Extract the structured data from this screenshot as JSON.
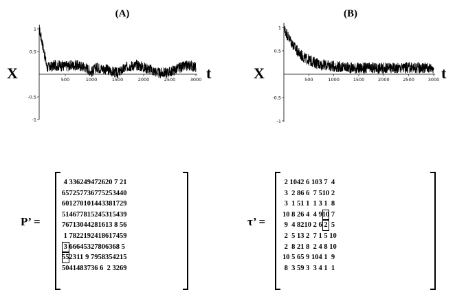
{
  "plots": [
    {
      "label": "(A)",
      "xlabel": "X",
      "tlabel": "t",
      "chart_data": {
        "type": "line",
        "title": "(A)",
        "xlabel": "t",
        "ylabel": "X",
        "xlim": [
          0,
          3000
        ],
        "ylim": [
          -1,
          1
        ],
        "xticks": [
          "500",
          "1000",
          "1500",
          "2000",
          "2500",
          "3000"
        ],
        "yticks": [
          "1",
          "0.5",
          "-0.5",
          "-1"
        ],
        "series": [
          {
            "values_description": "noisy trace starting near 1, dropping to ~0.15 by t=150 then fluctuating with dips below 0 around t=1000-1500 and t=2000-2500",
            "x": [
              0,
              50,
              100,
              150,
              200,
              300,
              500,
              700,
              900,
              1000,
              1100,
              1300,
              1500,
              1700,
              1900,
              2000,
              2100,
              2300,
              2500,
              2700,
              2900,
              3000
            ],
            "y": [
              1.0,
              0.75,
              0.45,
              0.15,
              0.15,
              0.2,
              0.18,
              0.2,
              0.15,
              0.05,
              0.15,
              0.1,
              0.02,
              0.18,
              0.2,
              0.15,
              0.12,
              0.02,
              0.05,
              0.15,
              0.2,
              0.15
            ]
          }
        ]
      }
    },
    {
      "label": "(B)",
      "xlabel": "X",
      "tlabel": "t",
      "chart_data": {
        "type": "line",
        "title": "(B)",
        "xlabel": "t",
        "ylabel": "X",
        "xlim": [
          0,
          3000
        ],
        "ylim": [
          -1,
          1
        ],
        "xticks": [
          "500",
          "1000",
          "1500",
          "2000",
          "2500",
          "3000"
        ],
        "yticks": [
          "1",
          "0.5",
          "-0.5",
          "-1"
        ],
        "series": [
          {
            "values_description": "noisy trace decaying from 1 to ~0.15 over t≈0-1200 then flat",
            "x": [
              0,
              100,
              200,
              300,
              400,
              500,
              700,
              900,
              1100,
              1300,
              1500,
              2000,
              2500,
              3000
            ],
            "y": [
              1.0,
              0.78,
              0.6,
              0.45,
              0.36,
              0.3,
              0.22,
              0.18,
              0.16,
              0.14,
              0.13,
              0.13,
              0.14,
              0.14
            ]
          }
        ]
      }
    }
  ],
  "matrices": [
    {
      "label": "P’ =",
      "rows": [
        [
          "4",
          "33",
          "62",
          "49",
          "47",
          "26",
          "20",
          "7",
          "21"
        ],
        [
          "65",
          "72",
          "57",
          "73",
          "67",
          "75",
          "25",
          "34",
          "40"
        ],
        [
          "60",
          "12",
          "70",
          "10",
          "14",
          "43",
          "38",
          "17",
          "29"
        ],
        [
          "51",
          "46",
          "77",
          "81",
          "52",
          "45",
          "31",
          "54",
          "39"
        ],
        [
          "76",
          "71",
          "30",
          "44",
          "28",
          "16",
          "13",
          "8",
          "56"
        ],
        [
          "1",
          "78",
          "22",
          "19",
          "24",
          "18",
          "61",
          "74",
          "59"
        ],
        [
          "3",
          "66",
          "64",
          "53",
          "27",
          "80",
          "63",
          "68",
          "5"
        ],
        [
          "55",
          "23",
          "11",
          "9",
          "79",
          "58",
          "35",
          "42",
          "15"
        ],
        [
          "50",
          "41",
          "48",
          "37",
          "36",
          "6",
          "2",
          "32",
          "69"
        ]
      ],
      "boxed": [
        [
          6,
          0
        ],
        [
          7,
          0
        ]
      ]
    },
    {
      "label": "τ’ =",
      "rows": [
        [
          "2",
          "10",
          "4",
          "2",
          "6",
          "10",
          "3",
          "7",
          "4"
        ],
        [
          "3",
          "2",
          "8",
          "6",
          "6",
          "7",
          "5",
          "10",
          "2"
        ],
        [
          "3",
          "1",
          "5",
          "1",
          "1",
          "1",
          "3",
          "1",
          "8"
        ],
        [
          "10",
          "8",
          "2",
          "6",
          "4",
          "4",
          "9",
          "10",
          "7"
        ],
        [
          "9",
          "4",
          "8",
          "2",
          "10",
          "2",
          "6",
          "2",
          "5"
        ],
        [
          "2",
          "5",
          "1",
          "3",
          "2",
          "7",
          "1",
          "5",
          "10"
        ],
        [
          "2",
          "8",
          "2",
          "1",
          "8",
          "2",
          "4",
          "8",
          "10"
        ],
        [
          "10",
          "5",
          "6",
          "5",
          "9",
          "10",
          "4",
          "1",
          "9"
        ],
        [
          "8",
          "3",
          "5",
          "9",
          "3",
          "3",
          "4",
          "1",
          "1"
        ]
      ],
      "boxed": [
        [
          3,
          7
        ],
        [
          4,
          7
        ]
      ]
    }
  ]
}
